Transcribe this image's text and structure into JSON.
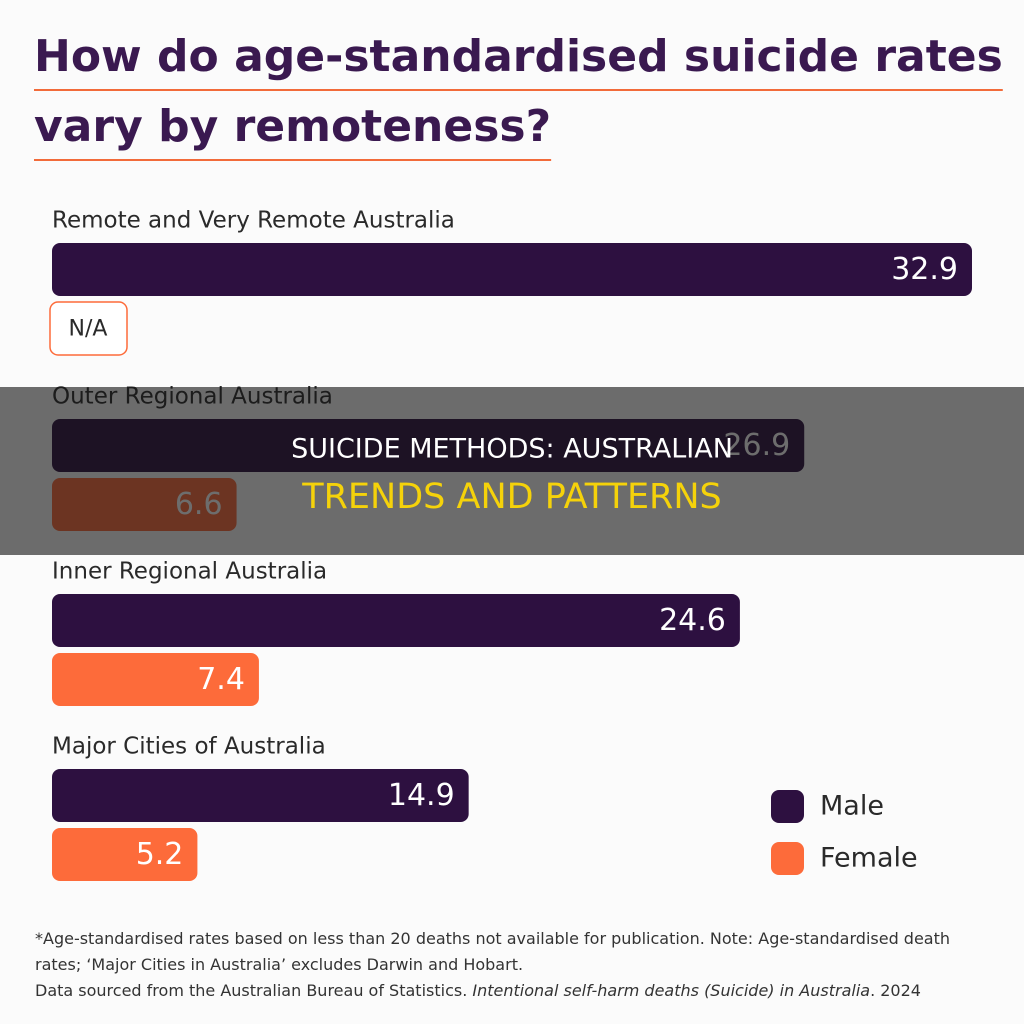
{
  "chart_data": {
    "type": "bar",
    "orientation": "horizontal",
    "title": "How do age-standardised suicide rates vary by remoteness?",
    "categories": [
      "Remote and Very Remote Australia",
      "Outer Regional Australia",
      "Inner Regional Australia",
      "Major Cities of Australia"
    ],
    "series": [
      {
        "name": "Male",
        "color": "#2d1040",
        "values": [
          32.9,
          26.9,
          24.6,
          14.9
        ]
      },
      {
        "name": "Female",
        "color": "#fd6b3a",
        "values": [
          null,
          6.6,
          7.4,
          5.2
        ],
        "value_labels": [
          "N/A",
          "6.6",
          "7.4",
          "5.2"
        ]
      }
    ],
    "legend": "bottom-right",
    "footnote": "*Age-standardised rates based on less than 20 deaths not available for publication. Note: Age-standardised death rates; ‘Major Cities in Australia’ excludes Darwin and Hobart.",
    "source_prefix": "Data sourced from the Australian Bureau of Statistics.",
    "source_title": "Intentional self-harm deaths (Suicide) in Australia",
    "source_suffix": ". 2024"
  },
  "overlay": {
    "line1": "SUICIDE METHODS: AUSTRALIAN",
    "line2": "TRENDS AND PATTERNS"
  }
}
